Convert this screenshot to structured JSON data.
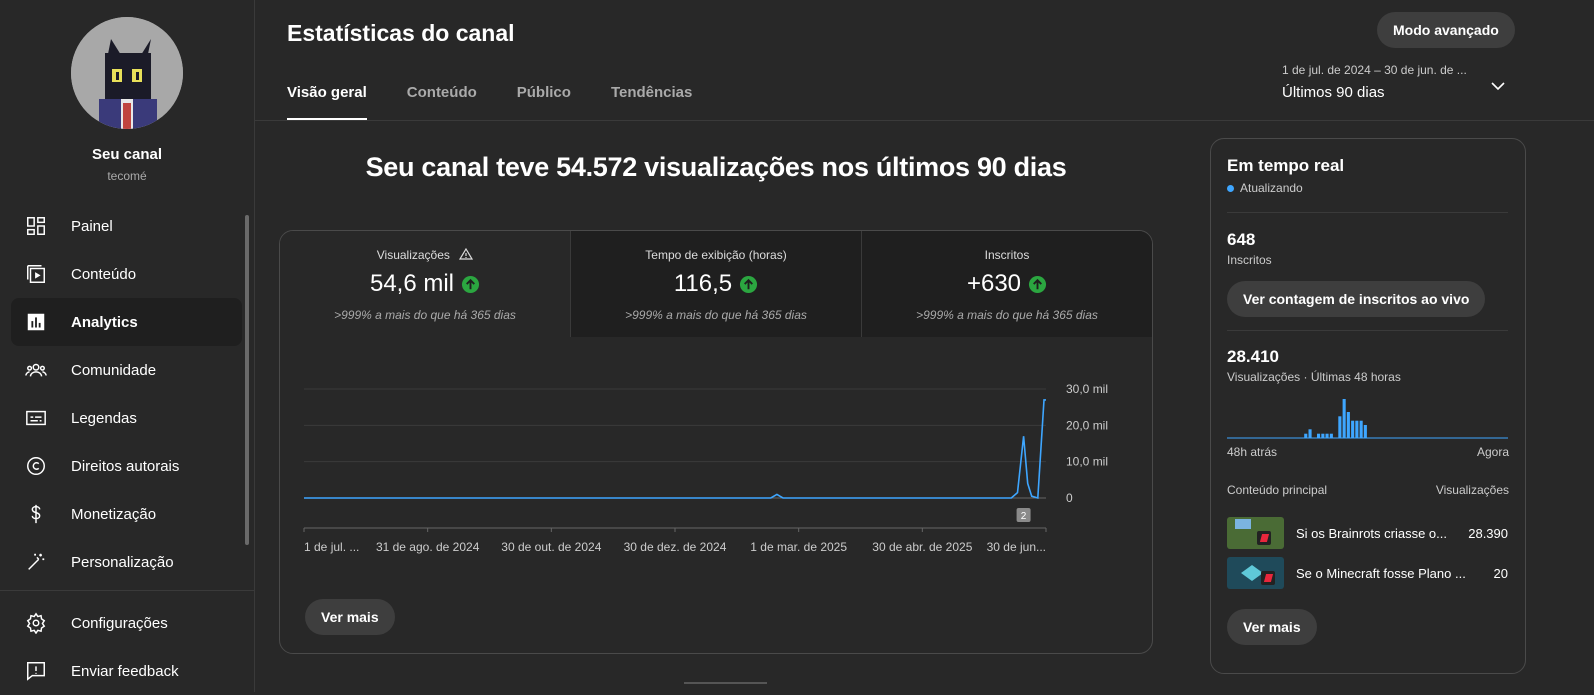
{
  "sidebar": {
    "channel_name": "Seu canal",
    "channel_handle": "tecomé",
    "items": [
      {
        "label": "Painel",
        "icon": "dashboard-icon"
      },
      {
        "label": "Conteúdo",
        "icon": "content-icon"
      },
      {
        "label": "Analytics",
        "icon": "analytics-icon",
        "active": true
      },
      {
        "label": "Comunidade",
        "icon": "community-icon"
      },
      {
        "label": "Legendas",
        "icon": "subtitles-icon"
      },
      {
        "label": "Direitos autorais",
        "icon": "copyright-icon"
      },
      {
        "label": "Monetização",
        "icon": "dollar-icon"
      },
      {
        "label": "Personalização",
        "icon": "magic-wand-icon"
      }
    ],
    "bottom": [
      {
        "label": "Configurações",
        "icon": "gear-icon"
      },
      {
        "label": "Enviar feedback",
        "icon": "feedback-icon"
      }
    ]
  },
  "header": {
    "title": "Estatísticas do canal",
    "advanced_button": "Modo avançado",
    "tabs": [
      "Visão geral",
      "Conteúdo",
      "Público",
      "Tendências"
    ],
    "date_range_small": "1 de jul. de 2024 – 30 de jun. de ...",
    "date_range_label": "Últimos 90 dias"
  },
  "headline": "Seu canal teve 54.572 visualizações nos últimos 90 dias",
  "metrics": [
    {
      "label": "Visualizações",
      "value": "54,6 mil",
      "compare": ">999% a mais do que há 365 dias",
      "warning": true
    },
    {
      "label": "Tempo de exibição (horas)",
      "value": "116,5",
      "compare": ">999% a mais do que há 365 dias"
    },
    {
      "label": "Inscritos",
      "value": "+630",
      "compare": ">999% a mais do que há 365 dias"
    }
  ],
  "chart_data": {
    "type": "line",
    "x_ticks": [
      "1 de jul. ...",
      "31 de ago. de 2024",
      "30 de out. de 2024",
      "30 de dez. de 2024",
      "1 de mar. de 2025",
      "30 de abr. de 2025",
      "30 de jun..."
    ],
    "y_ticks": [
      "30,0 mil",
      "20,0 mil",
      "10,0 mil",
      "0"
    ],
    "ylim": [
      0,
      30000
    ],
    "x": [
      "2024-07-01",
      "2025-02-15",
      "2025-02-18",
      "2025-02-21",
      "2025-06-13",
      "2025-06-16",
      "2025-06-19",
      "2025-06-21",
      "2025-06-23",
      "2025-06-26",
      "2025-06-29",
      "2025-06-30"
    ],
    "series": [
      {
        "color": "#3ea6ff",
        "values": [
          0,
          0,
          1000,
          0,
          0,
          1500,
          17000,
          4000,
          500,
          0,
          27000,
          27000
        ]
      }
    ],
    "marker_label": "2",
    "color": "#3ea6ff"
  },
  "main_more_button": "Ver mais",
  "realtime": {
    "title": "Em tempo real",
    "status": "Atualizando",
    "subscribers": "648",
    "subscribers_label": "Inscritos",
    "live_button": "Ver contagem de inscritos ao vivo",
    "views": "28.410",
    "views_label": "Visualizações · Últimas 48 horas",
    "bars": [
      0,
      0,
      0,
      0,
      0,
      0,
      0,
      0,
      0,
      0,
      0,
      0,
      0,
      0,
      0,
      0,
      0,
      0,
      1,
      2,
      0,
      1,
      1,
      1,
      1,
      0,
      5,
      9,
      6,
      4,
      4,
      4,
      3,
      0,
      0,
      0,
      0,
      0,
      0,
      0,
      0,
      0,
      0,
      0,
      0,
      0,
      0,
      0,
      0,
      0,
      0,
      0,
      0,
      0,
      0,
      0,
      0,
      0,
      0,
      0,
      0,
      0,
      0,
      0,
      0,
      0
    ],
    "axis_left": "48h atrás",
    "axis_right": "Agora",
    "top_content_label": "Conteúdo principal",
    "top_views_label": "Visualizações",
    "top_content": [
      {
        "title": "Si os Brainrots criasse o...",
        "views": "28.390"
      },
      {
        "title": "Se o Minecraft fosse Plano ...",
        "views": "20"
      }
    ],
    "more_button": "Ver mais"
  }
}
